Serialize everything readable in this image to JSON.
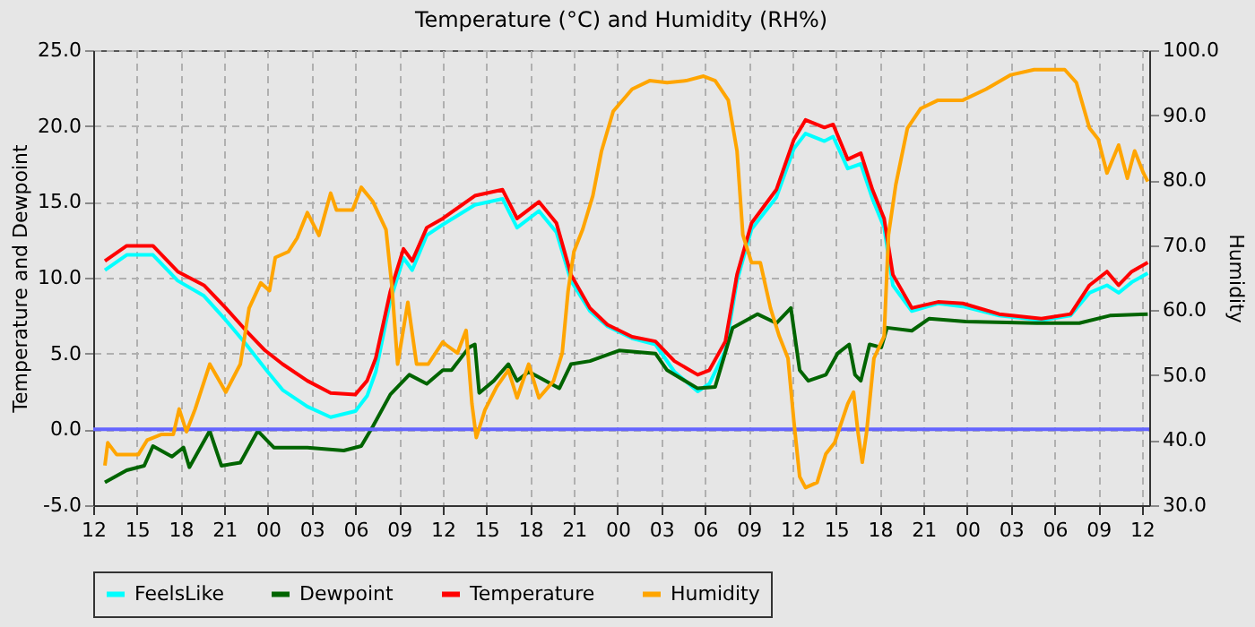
{
  "chart_data": {
    "type": "line",
    "title": "Temperature (°C) and Humidity (RH%)",
    "ylabel": "Temperature and Dewpoint",
    "y2label": "Humidity",
    "xlim": [
      12,
      84.5
    ],
    "xticks": [
      12,
      15,
      18,
      21,
      {
        "value": 24,
        "label": "00"
      },
      {
        "value": 27,
        "label": "03"
      },
      {
        "value": 30,
        "label": "06"
      },
      {
        "value": 33,
        "label": "09"
      },
      {
        "value": 36,
        "label": "12"
      },
      {
        "value": 39,
        "label": "15"
      },
      {
        "value": 42,
        "label": "18"
      },
      {
        "value": 45,
        "label": "21"
      },
      {
        "value": 48,
        "label": "00"
      },
      {
        "value": 51,
        "label": "03"
      },
      {
        "value": 54,
        "label": "06"
      },
      {
        "value": 57,
        "label": "09"
      },
      {
        "value": 60,
        "label": "12"
      },
      {
        "value": 63,
        "label": "15"
      },
      {
        "value": 66,
        "label": "18"
      },
      {
        "value": 69,
        "label": "21"
      },
      {
        "value": 72,
        "label": "00"
      },
      {
        "value": 75,
        "label": "03"
      },
      {
        "value": 78,
        "label": "06"
      },
      {
        "value": 81,
        "label": "09"
      },
      {
        "value": 84,
        "label": "12"
      }
    ],
    "ylim": [
      -5,
      25
    ],
    "yticks": [
      {
        "value": -5,
        "label": "-5.0"
      },
      {
        "value": 0,
        "label": "0.0"
      },
      {
        "value": 5,
        "label": "5.0"
      },
      {
        "value": 10,
        "label": "10.0"
      },
      {
        "value": 15,
        "label": "15.0"
      },
      {
        "value": 20,
        "label": "20.0"
      },
      {
        "value": 25,
        "label": "25.0"
      }
    ],
    "y2lim": [
      30,
      100
    ],
    "y2ticks": [
      {
        "value": 30,
        "label": "30.0"
      },
      {
        "value": 40,
        "label": "40.0"
      },
      {
        "value": 50,
        "label": "50.0"
      },
      {
        "value": 60,
        "label": "60.0"
      },
      {
        "value": 70,
        "label": "70.0"
      },
      {
        "value": 80,
        "label": "80.0"
      },
      {
        "value": 90,
        "label": "90.0"
      },
      {
        "value": 100,
        "label": "100.0"
      }
    ],
    "grid": true,
    "legend": "bottom",
    "marker": "none",
    "line_style": "solid",
    "ref_lines": [
      {
        "axis": "y",
        "value": 0,
        "color": "#6464ff"
      }
    ],
    "series": [
      {
        "name": "FeelsLike",
        "color": "#00ffff",
        "x": [
          12.8,
          14.3,
          16.1,
          17.8,
          19.6,
          21.1,
          22.5,
          23.8,
          25,
          26.7,
          28.3,
          30,
          30.8,
          31.4,
          32.4,
          33.3,
          33.9,
          34.9,
          36,
          38.2,
          40.1,
          41.1,
          42.6,
          43.8,
          44.8,
          46.1,
          47.3,
          49,
          50.6,
          51.9,
          53.5,
          54.3,
          55.4,
          56.2,
          57.2,
          58.9,
          60.1,
          60.9,
          62.2,
          62.8,
          63.8,
          64.7,
          65.5,
          66.3,
          66.9,
          68.2,
          70,
          71.7,
          74.2,
          77.1,
          79.1,
          80.4,
          81.6,
          82.4,
          83.3,
          84.4
        ],
        "values": [
          10.5,
          11.5,
          11.5,
          9.8,
          8.8,
          7.2,
          5.6,
          4,
          2.6,
          1.5,
          0.8,
          1.2,
          2.2,
          3.8,
          8.5,
          11.3,
          10.5,
          12.8,
          13.5,
          14.8,
          15.2,
          13.3,
          14.4,
          13,
          9.8,
          7.8,
          6.8,
          6,
          5.6,
          3.8,
          2.5,
          3,
          5.2,
          9.8,
          13.2,
          15.3,
          18.5,
          19.5,
          19,
          19.3,
          17.2,
          17.5,
          15.2,
          13.3,
          9.5,
          7.8,
          8.3,
          8.1,
          7.5,
          7.2,
          7.5,
          9,
          9.5,
          9,
          9.7,
          10.3
        ]
      },
      {
        "name": "Dewpoint",
        "color": "#006400",
        "x": [
          12.8,
          14.3,
          15.5,
          16.1,
          17.4,
          18.2,
          18.6,
          20,
          20.8,
          22.1,
          23.3,
          24.4,
          26.7,
          29.2,
          30.4,
          31.2,
          32.4,
          33.7,
          34.9,
          36,
          36.6,
          37.8,
          38.2,
          38.5,
          39.5,
          40.5,
          41.1,
          41.9,
          44,
          44.8,
          46.1,
          48.1,
          50.6,
          51.4,
          53.5,
          54.7,
          55.9,
          57.6,
          58.9,
          59.9,
          60.5,
          61.1,
          62.3,
          63.1,
          63.9,
          64.3,
          64.7,
          65.3,
          66.1,
          66.5,
          68.2,
          69.4,
          71.9,
          76.8,
          79.7,
          81.8,
          84.4
        ],
        "values": [
          -3.5,
          -2.7,
          -2.4,
          -1.1,
          -1.8,
          -1.2,
          -2.5,
          -0.1,
          -2.4,
          -2.2,
          -0.1,
          -1.2,
          -1.2,
          -1.4,
          -1.1,
          0.2,
          2.3,
          3.6,
          3.0,
          3.9,
          3.9,
          5.4,
          5.6,
          2.4,
          3.2,
          4.3,
          3.2,
          3.8,
          2.7,
          4.3,
          4.5,
          5.2,
          5.0,
          3.9,
          2.7,
          2.8,
          6.7,
          7.6,
          7.0,
          8,
          3.9,
          3.2,
          3.6,
          5.0,
          5.6,
          3.6,
          3.2,
          5.6,
          5.4,
          6.7,
          6.5,
          7.3,
          7.1,
          7.0,
          7.0,
          7.5,
          7.6
        ]
      },
      {
        "name": "Temperature",
        "color": "#ff0000",
        "x": [
          12.8,
          14.3,
          16.1,
          17.8,
          19.6,
          21.1,
          22.5,
          23.8,
          25,
          26.7,
          28.3,
          30,
          30.8,
          31.4,
          32.4,
          33.3,
          33.9,
          34.9,
          36,
          38.2,
          40.1,
          41.1,
          42.6,
          43.8,
          44.8,
          46.1,
          47.3,
          49,
          50.6,
          51.9,
          53.5,
          54.3,
          55.4,
          56.2,
          57.2,
          58.9,
          60.1,
          60.9,
          62.2,
          62.8,
          63.8,
          64.7,
          65.5,
          66.3,
          66.9,
          68.2,
          70,
          71.7,
          74.2,
          77.1,
          79.1,
          80.4,
          81.6,
          82.4,
          83.3,
          84.4
        ],
        "values": [
          11.1,
          12.1,
          12.1,
          10.4,
          9.5,
          8,
          6.5,
          5.2,
          4.3,
          3.2,
          2.4,
          2.3,
          3.2,
          4.7,
          9.1,
          11.9,
          11.1,
          13.3,
          13.9,
          15.4,
          15.8,
          13.9,
          15,
          13.6,
          10.2,
          8,
          6.9,
          6.1,
          5.8,
          4.5,
          3.6,
          3.9,
          5.8,
          10.2,
          13.6,
          15.8,
          19.1,
          20.4,
          19.9,
          20.1,
          17.8,
          18.2,
          15.8,
          13.9,
          10.2,
          8,
          8.4,
          8.3,
          7.6,
          7.3,
          7.6,
          9.5,
          10.4,
          9.5,
          10.4,
          11
        ]
      },
      {
        "name": "Humidity",
        "color": "#ffa500",
        "axis": "y2",
        "x": [
          12.8,
          13,
          13.6,
          15.1,
          15.7,
          16.7,
          17.5,
          17.9,
          18.4,
          19,
          20,
          21.1,
          22.1,
          22.7,
          23.5,
          24.1,
          24.5,
          25.4,
          26,
          26.7,
          27.5,
          28.3,
          28.7,
          29.8,
          30.4,
          31.2,
          32.1,
          32.5,
          32.9,
          33.6,
          34.2,
          35,
          36,
          36.2,
          37,
          37.6,
          38,
          38.3,
          38.9,
          39.7,
          40.5,
          41.1,
          41.9,
          42.6,
          43.6,
          44.2,
          44.6,
          45,
          45.6,
          46.3,
          46.9,
          47.7,
          49,
          50.2,
          51.4,
          52.7,
          53.9,
          54.7,
          55.6,
          56.2,
          56.6,
          57.2,
          57.8,
          58.5,
          59.1,
          59.7,
          60.1,
          60.5,
          60.9,
          61.7,
          62.3,
          62.9,
          63.8,
          64.2,
          64.5,
          64.8,
          65.1,
          65.6,
          66.3,
          66.6,
          67.1,
          67.9,
          68.8,
          70,
          71.7,
          73.3,
          75,
          76.6,
          78.7,
          79.5,
          80.4,
          81,
          81.6,
          82.4,
          83,
          83.5,
          84.1,
          84.4
        ],
        "values": [
          36.1,
          39.6,
          37.8,
          37.8,
          40,
          40.9,
          40.9,
          44.8,
          41.3,
          44.8,
          51.7,
          47.4,
          51.7,
          60.3,
          64.2,
          63,
          68.1,
          69,
          71.1,
          75,
          71.5,
          78,
          75.4,
          75.4,
          78.9,
          76.7,
          72.4,
          63.8,
          51.7,
          61.2,
          51.7,
          51.7,
          55.1,
          54.7,
          53.4,
          56.9,
          45.6,
          40.4,
          44.7,
          48.2,
          50.8,
          46.5,
          51.7,
          46.5,
          49.1,
          53.4,
          62.9,
          69,
          72.4,
          77.6,
          84.5,
          90.6,
          94,
          95.3,
          95,
          95.3,
          96,
          95.3,
          92.3,
          84.5,
          71.6,
          67.3,
          67.3,
          60.3,
          56,
          52.6,
          43,
          34.4,
          32.7,
          33.5,
          37.9,
          39.6,
          45.6,
          47.4,
          41.3,
          36.6,
          41.3,
          52.6,
          56,
          71.6,
          79.3,
          88,
          91,
          92.3,
          92.3,
          94,
          96.2,
          97,
          97,
          95,
          88,
          86.3,
          81.1,
          85.4,
          80.3,
          84.5,
          81.1,
          79.8
        ]
      }
    ]
  }
}
